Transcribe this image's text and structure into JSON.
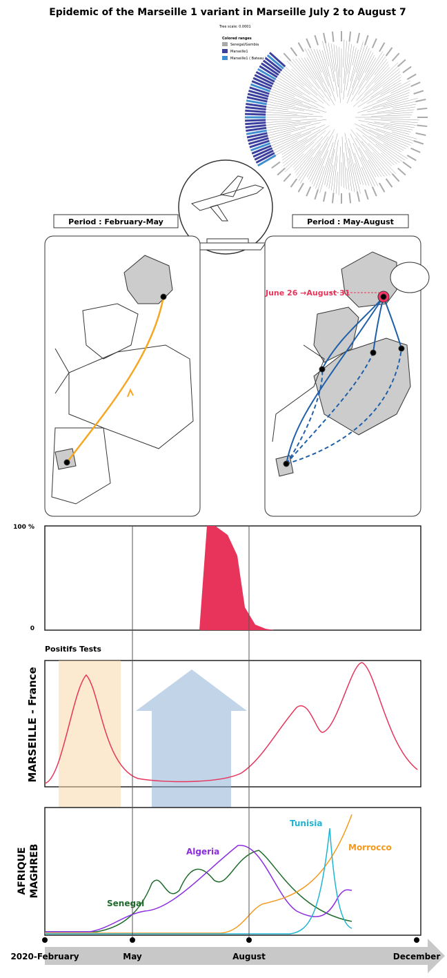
{
  "title": "Epidemic of the Marseille 1 variant in Marseille July 2 to August 7",
  "tree": {
    "scale": "Tree scale: 0.0001",
    "legend_title": "Colored ranges",
    "legend": [
      "Senegal/Gambia",
      "Marseille1",
      "Marseille1 ( Bateau )"
    ]
  },
  "periods": [
    "Period : February-May",
    "Period : May-August"
  ],
  "annotation": "June 26 →August 31",
  "proportion": {
    "top_label": "100 %",
    "bottom_label": "0"
  },
  "positive_tests": "Positifs Tests",
  "marseille_label": "MARSEILLE - France",
  "africa_label": [
    "AFRIQUE",
    "MAGHREB"
  ],
  "countries": [
    "Tunisia",
    "Morrocco",
    "Algeria",
    "Senegal"
  ],
  "timeline": [
    "2020-February",
    "May",
    "August",
    "December"
  ]
}
